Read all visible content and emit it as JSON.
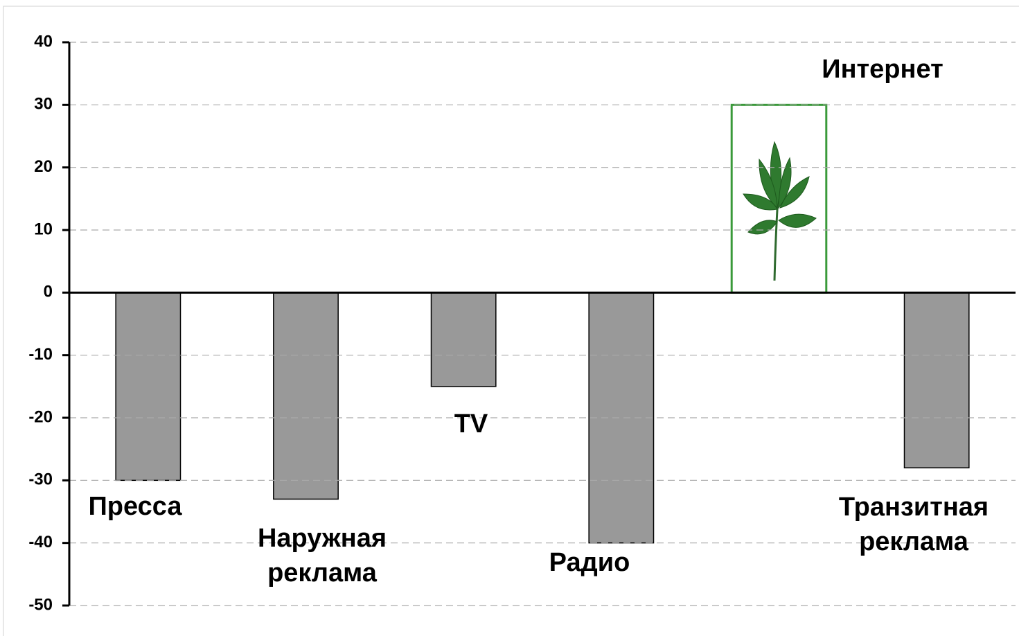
{
  "chart_data": {
    "type": "bar",
    "categories": [
      "Пресса",
      "Наружная реклама",
      "TV",
      "Радио",
      "Интернет",
      "Транзитная реклама"
    ],
    "values": [
      -30,
      -33,
      -15,
      -40,
      30,
      -28
    ],
    "colors": [
      "#999999",
      "#999999",
      "#999999",
      "#999999",
      "#ffffff",
      "#999999"
    ],
    "edge_colors": [
      "#000000",
      "#000000",
      "#000000",
      "#000000",
      "#3a9a3a",
      "#000000"
    ],
    "ylim": [
      -50,
      40
    ],
    "yticks": [
      -50,
      -40,
      -30,
      -20,
      -10,
      0,
      10,
      20,
      30,
      40
    ],
    "grid": true
  }
}
